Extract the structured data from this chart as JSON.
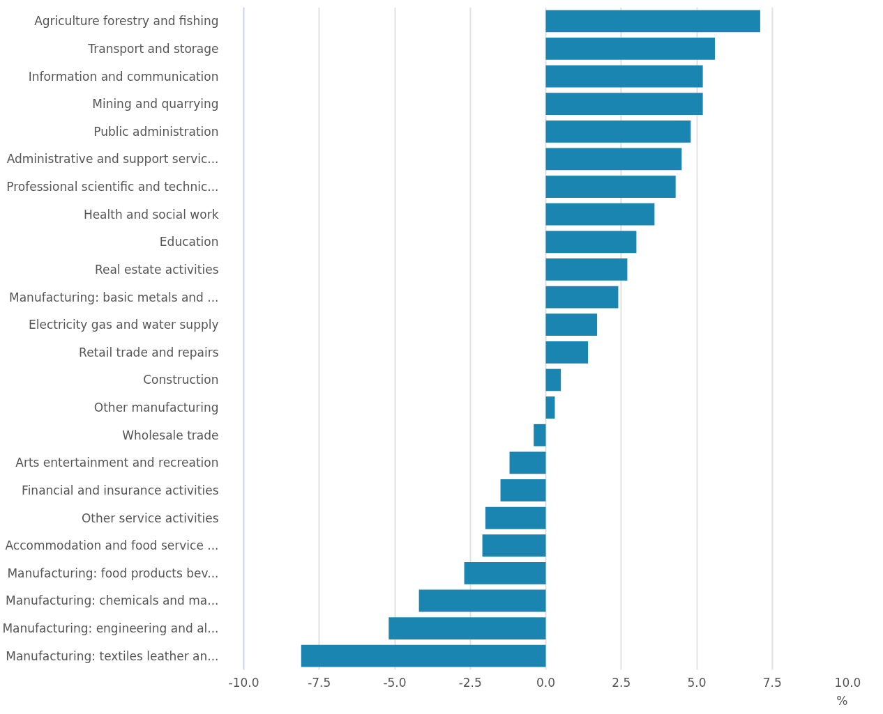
{
  "chart_data": {
    "type": "bar",
    "orientation": "horizontal",
    "xlabel": "%",
    "categories": [
      "Agriculture forestry and fishing",
      "Transport and storage",
      "Information and communication",
      "Mining and quarrying",
      "Public administration",
      "Administrative and support servic...",
      "Professional scientific and technic...",
      "Health and social work",
      "Education",
      "Real estate activities",
      "Manufacturing: basic metals and ...",
      "Electricity gas and water supply",
      "Retail trade and repairs",
      "Construction",
      "Other manufacturing",
      "Wholesale trade",
      "Arts entertainment and recreation",
      "Financial and insurance activities",
      "Other service activities",
      "Accommodation and food service ...",
      "Manufacturing: food products bev...",
      "Manufacturing: chemicals and ma...",
      "Manufacturing: engineering and al...",
      "Manufacturing: textiles leather an..."
    ],
    "values": [
      7.1,
      5.6,
      5.2,
      5.2,
      4.8,
      4.5,
      4.3,
      3.6,
      3.0,
      2.7,
      2.4,
      1.7,
      1.4,
      0.5,
      0.3,
      -0.4,
      -1.2,
      -1.5,
      -2.0,
      -2.1,
      -2.7,
      -4.2,
      -5.2,
      -8.1
    ],
    "color": "#1a85b0",
    "xlim": [
      -10,
      10
    ],
    "xticks": [
      {
        "value": -10,
        "label": "-10.0"
      },
      {
        "value": -7.5,
        "label": "-7.5"
      },
      {
        "value": -5,
        "label": "-5.0"
      },
      {
        "value": -2.5,
        "label": "-2.5"
      },
      {
        "value": 0,
        "label": "0.0"
      },
      {
        "value": 2.5,
        "label": "2.5"
      },
      {
        "value": 5,
        "label": "5.0"
      },
      {
        "value": 7.5,
        "label": "7.5"
      },
      {
        "value": 10,
        "label": "10.0"
      }
    ],
    "grid": "x"
  }
}
